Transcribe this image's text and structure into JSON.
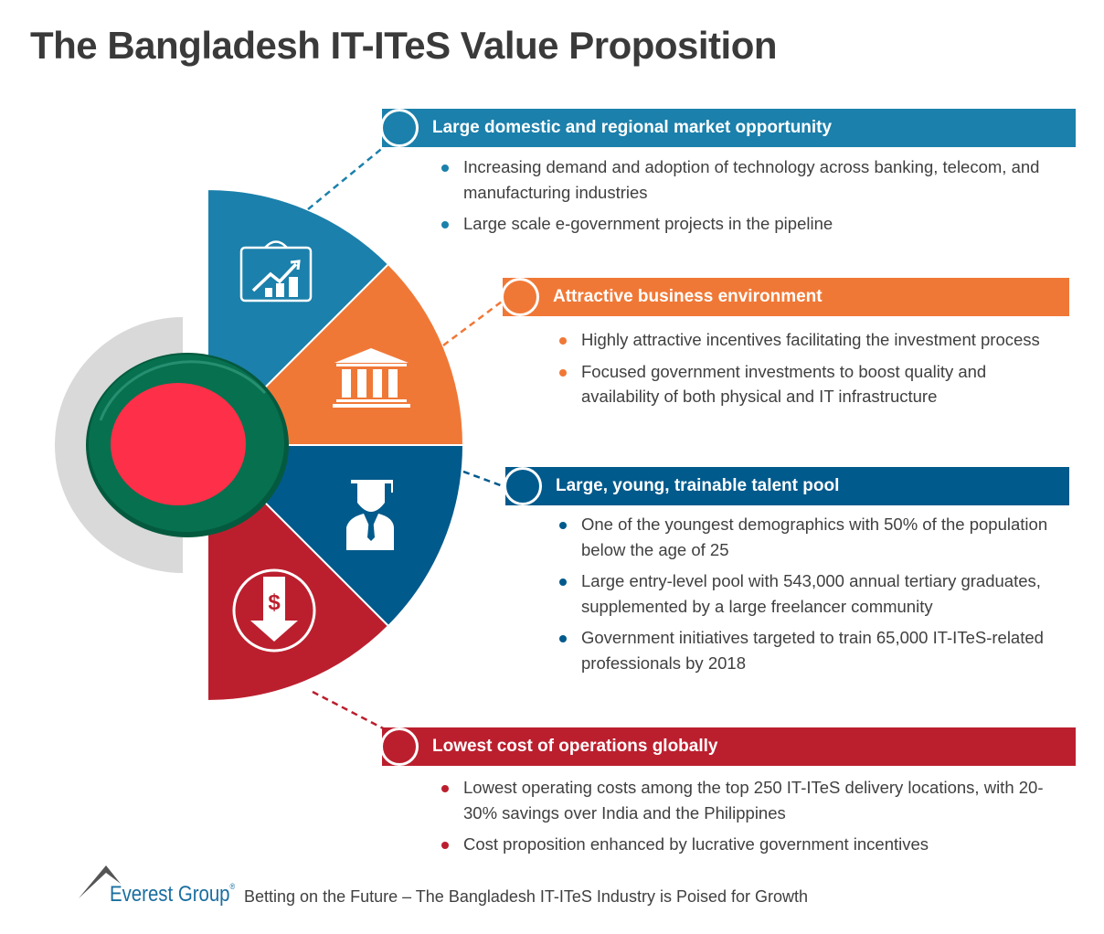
{
  "title": "The Bangladesh IT-ITeS Value Proposition",
  "colors": {
    "blue": "#1b80ab",
    "orange": "#f07836",
    "dark_blue": "#015a8c",
    "red": "#bb1f2e",
    "flag_green": "#07704f",
    "flag_red": "#fe2f48"
  },
  "sections": [
    {
      "icon": "briefcase-growth-chart-icon",
      "heading": "Large domestic and regional market opportunity",
      "bullets": [
        "Increasing demand and adoption of technology across banking, telecom, and manufacturing industries",
        "Large scale e-government projects in the pipeline"
      ]
    },
    {
      "icon": "bank-building-icon",
      "heading": "Attractive business environment",
      "bullets": [
        "Highly attractive incentives facilitating the investment process",
        "Focused government investments to boost quality and availability of both physical and IT infrastructure"
      ]
    },
    {
      "icon": "graduate-icon",
      "heading": "Large, young, trainable talent pool",
      "bullets": [
        "One of the youngest demographics with 50% of the population below the age of 25",
        "Large entry-level pool with 543,000 annual tertiary graduates, supplemented by a large freelancer community",
        "Government initiatives targeted to train 65,000 IT-ITeS-related professionals by 2018"
      ]
    },
    {
      "icon": "dollar-down-arrow-icon",
      "heading": "Lowest cost of operations globally",
      "bullets": [
        "Lowest operating costs among the top 250 IT-ITeS delivery locations, with 20-30% savings over India and the Philippines",
        "Cost proposition enhanced by lucrative government incentives"
      ]
    }
  ],
  "footer": {
    "brand": "Everest Group",
    "registered": "®",
    "subtitle": "Betting on the Future – The Bangladesh IT-ITeS Industry is Poised for Growth"
  }
}
